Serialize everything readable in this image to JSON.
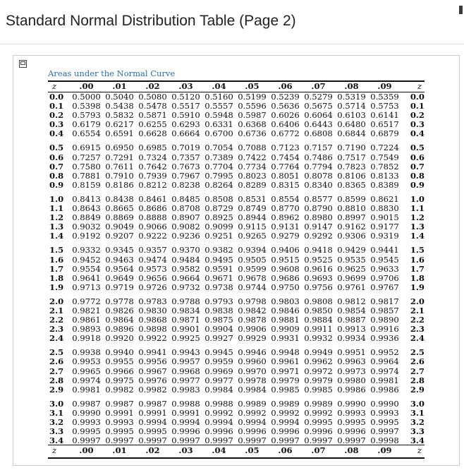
{
  "page_title": "Standard Normal Distribution Table (Page 2)",
  "caption": "Areas under the Normal Curve",
  "z_label": "z",
  "columns": [
    ".00",
    ".01",
    ".02",
    ".03",
    ".04",
    ".05",
    ".06",
    ".07",
    ".08",
    ".09"
  ],
  "rows": [
    {
      "z": "0.0",
      "v": [
        "0.5000",
        "0.5040",
        "0.5080",
        "0.5120",
        "0.5160",
        "0.5199",
        "0.5239",
        "0.5279",
        "0.5319",
        "0.5359"
      ]
    },
    {
      "z": "0.1",
      "v": [
        "0.5398",
        "0.5438",
        "0.5478",
        "0.5517",
        "0.5557",
        "0.5596",
        "0.5636",
        "0.5675",
        "0.5714",
        "0.5753"
      ]
    },
    {
      "z": "0.2",
      "v": [
        "0.5793",
        "0.5832",
        "0.5871",
        "0.5910",
        "0.5948",
        "0.5987",
        "0.6026",
        "0.6064",
        "0.6103",
        "0.6141"
      ]
    },
    {
      "z": "0.3",
      "v": [
        "0.6179",
        "0.6217",
        "0.6255",
        "0.6293",
        "0.6331",
        "0.6368",
        "0.6406",
        "0.6443",
        "0.6480",
        "0.6517"
      ]
    },
    {
      "z": "0.4",
      "v": [
        "0.6554",
        "0.6591",
        "0.6628",
        "0.6664",
        "0.6700",
        "0.6736",
        "0.6772",
        "0.6808",
        "0.6844",
        "0.6879"
      ]
    },
    {
      "z": "0.5",
      "v": [
        "0.6915",
        "0.6950",
        "0.6985",
        "0.7019",
        "0.7054",
        "0.7088",
        "0.7123",
        "0.7157",
        "0.7190",
        "0.7224"
      ]
    },
    {
      "z": "0.6",
      "v": [
        "0.7257",
        "0.7291",
        "0.7324",
        "0.7357",
        "0.7389",
        "0.7422",
        "0.7454",
        "0.7486",
        "0.7517",
        "0.7549"
      ]
    },
    {
      "z": "0.7",
      "v": [
        "0.7580",
        "0.7611",
        "0.7642",
        "0.7673",
        "0.7704",
        "0.7734",
        "0.7764",
        "0.7794",
        "0.7823",
        "0.7852"
      ]
    },
    {
      "z": "0.8",
      "v": [
        "0.7881",
        "0.7910",
        "0.7939",
        "0.7967",
        "0.7995",
        "0.8023",
        "0.8051",
        "0.8078",
        "0.8106",
        "0.8133"
      ]
    },
    {
      "z": "0.9",
      "v": [
        "0.8159",
        "0.8186",
        "0.8212",
        "0.8238",
        "0.8264",
        "0.8289",
        "0.8315",
        "0.8340",
        "0.8365",
        "0.8389"
      ]
    },
    {
      "z": "1.0",
      "v": [
        "0.8413",
        "0.8438",
        "0.8461",
        "0.8485",
        "0.8508",
        "0.8531",
        "0.8554",
        "0.8577",
        "0.8599",
        "0.8621"
      ]
    },
    {
      "z": "1.1",
      "v": [
        "0.8643",
        "0.8665",
        "0.8686",
        "0.8708",
        "0.8729",
        "0.8749",
        "0.8770",
        "0.8790",
        "0.8810",
        "0.8830"
      ]
    },
    {
      "z": "1.2",
      "v": [
        "0.8849",
        "0.8869",
        "0.8888",
        "0.8907",
        "0.8925",
        "0.8944",
        "0.8962",
        "0.8980",
        "0.8997",
        "0.9015"
      ]
    },
    {
      "z": "1.3",
      "v": [
        "0.9032",
        "0.9049",
        "0.9066",
        "0.9082",
        "0.9099",
        "0.9115",
        "0.9131",
        "0.9147",
        "0.9162",
        "0.9177"
      ]
    },
    {
      "z": "1.4",
      "v": [
        "0.9192",
        "0.9207",
        "0.9222",
        "0.9236",
        "0.9251",
        "0.9265",
        "0.9279",
        "0.9292",
        "0.9306",
        "0.9319"
      ]
    },
    {
      "z": "1.5",
      "v": [
        "0.9332",
        "0.9345",
        "0.9357",
        "0.9370",
        "0.9382",
        "0.9394",
        "0.9406",
        "0.9418",
        "0.9429",
        "0.9441"
      ]
    },
    {
      "z": "1.6",
      "v": [
        "0.9452",
        "0.9463",
        "0.9474",
        "0.9484",
        "0.9495",
        "0.9505",
        "0.9515",
        "0.9525",
        "0.9535",
        "0.9545"
      ]
    },
    {
      "z": "1.7",
      "v": [
        "0.9554",
        "0.9564",
        "0.9573",
        "0.9582",
        "0.9591",
        "0.9599",
        "0.9608",
        "0.9616",
        "0.9625",
        "0.9633"
      ]
    },
    {
      "z": "1.8",
      "v": [
        "0.9641",
        "0.9649",
        "0.9656",
        "0.9664",
        "0.9671",
        "0.9678",
        "0.9686",
        "0.9693",
        "0.9699",
        "0.9706"
      ]
    },
    {
      "z": "1.9",
      "v": [
        "0.9713",
        "0.9719",
        "0.9726",
        "0.9732",
        "0.9738",
        "0.9744",
        "0.9750",
        "0.9756",
        "0.9761",
        "0.9767"
      ]
    },
    {
      "z": "2.0",
      "v": [
        "0.9772",
        "0.9778",
        "0.9783",
        "0.9788",
        "0.9793",
        "0.9798",
        "0.9803",
        "0.9808",
        "0.9812",
        "0.9817"
      ]
    },
    {
      "z": "2.1",
      "v": [
        "0.9821",
        "0.9826",
        "0.9830",
        "0.9834",
        "0.9838",
        "0.9842",
        "0.9846",
        "0.9850",
        "0.9854",
        "0.9857"
      ]
    },
    {
      "z": "2.2",
      "v": [
        "0.9861",
        "0.9864",
        "0.9868",
        "0.9871",
        "0.9875",
        "0.9878",
        "0.9881",
        "0.9884",
        "0.9887",
        "0.9890"
      ]
    },
    {
      "z": "2.3",
      "v": [
        "0.9893",
        "0.9896",
        "0.9898",
        "0.9901",
        "0.9904",
        "0.9906",
        "0.9909",
        "0.9911",
        "0.9913",
        "0.9916"
      ]
    },
    {
      "z": "2.4",
      "v": [
        "0.9918",
        "0.9920",
        "0.9922",
        "0.9925",
        "0.9927",
        "0.9929",
        "0.9931",
        "0.9932",
        "0.9934",
        "0.9936"
      ]
    },
    {
      "z": "2.5",
      "v": [
        "0.9938",
        "0.9940",
        "0.9941",
        "0.9943",
        "0.9945",
        "0.9946",
        "0.9948",
        "0.9949",
        "0.9951",
        "0.9952"
      ]
    },
    {
      "z": "2.6",
      "v": [
        "0.9953",
        "0.9955",
        "0.9956",
        "0.9957",
        "0.9959",
        "0.9960",
        "0.9961",
        "0.9962",
        "0.9963",
        "0.9964"
      ]
    },
    {
      "z": "2.7",
      "v": [
        "0.9965",
        "0.9966",
        "0.9967",
        "0.9968",
        "0.9969",
        "0.9970",
        "0.9971",
        "0.9972",
        "0.9973",
        "0.9974"
      ]
    },
    {
      "z": "2.8",
      "v": [
        "0.9974",
        "0.9975",
        "0.9976",
        "0.9977",
        "0.9977",
        "0.9978",
        "0.9979",
        "0.9979",
        "0.9980",
        "0.9981"
      ]
    },
    {
      "z": "2.9",
      "v": [
        "0.9981",
        "0.9982",
        "0.9982",
        "0.9983",
        "0.9984",
        "0.9984",
        "0.9985",
        "0.9985",
        "0.9986",
        "0.9986"
      ]
    },
    {
      "z": "3.0",
      "v": [
        "0.9987",
        "0.9987",
        "0.9987",
        "0.9988",
        "0.9988",
        "0.9989",
        "0.9989",
        "0.9989",
        "0.9990",
        "0.9990"
      ]
    },
    {
      "z": "3.1",
      "v": [
        "0.9990",
        "0.9991",
        "0.9991",
        "0.9991",
        "0.9992",
        "0.9992",
        "0.9992",
        "0.9992",
        "0.9993",
        "0.9993"
      ]
    },
    {
      "z": "3.2",
      "v": [
        "0.9993",
        "0.9993",
        "0.9994",
        "0.9994",
        "0.9994",
        "0.9994",
        "0.9994",
        "0.9995",
        "0.9995",
        "0.9995"
      ]
    },
    {
      "z": "3.3",
      "v": [
        "0.9995",
        "0.9995",
        "0.9995",
        "0.9996",
        "0.9996",
        "0.9996",
        "0.9996",
        "0.9996",
        "0.9996",
        "0.9997"
      ]
    },
    {
      "z": "3.4",
      "v": [
        "0.9997",
        "0.9997",
        "0.9997",
        "0.9997",
        "0.9997",
        "0.9997",
        "0.9997",
        "0.9997",
        "0.9997",
        "0.9998"
      ]
    }
  ]
}
